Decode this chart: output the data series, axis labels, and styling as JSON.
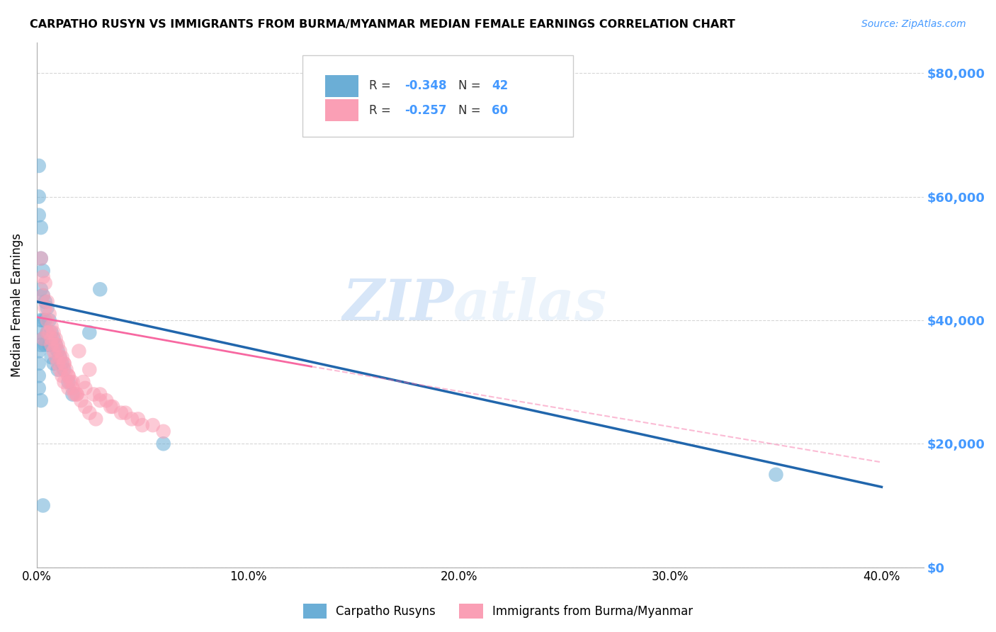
{
  "title": "CARPATHO RUSYN VS IMMIGRANTS FROM BURMA/MYANMAR MEDIAN FEMALE EARNINGS CORRELATION CHART",
  "source": "Source: ZipAtlas.com",
  "ylabel": "Median Female Earnings",
  "xlabel_ticks": [
    "0.0%",
    "10.0%",
    "20.0%",
    "30.0%",
    "40.0%"
  ],
  "xlabel_vals": [
    0.0,
    0.1,
    0.2,
    0.3,
    0.4
  ],
  "ylabel_ticks": [
    0,
    20000,
    40000,
    60000,
    80000
  ],
  "ylabel_labels": [
    "$0",
    "$20,000",
    "$40,000",
    "$60,000",
    "$80,000"
  ],
  "legend1_label": "Carpatho Rusyns",
  "legend2_label": "Immigrants from Burma/Myanmar",
  "R1": -0.348,
  "N1": 42,
  "R2": -0.257,
  "N2": 60,
  "color_blue": "#6baed6",
  "color_pink": "#fa9fb5",
  "color_blue_line": "#2166ac",
  "color_pink_line": "#f768a1",
  "color_right_axis": "#4499ff",
  "blue_x": [
    0.001,
    0.001,
    0.001,
    0.001,
    0.002,
    0.002,
    0.002,
    0.002,
    0.002,
    0.003,
    0.003,
    0.003,
    0.003,
    0.004,
    0.004,
    0.004,
    0.005,
    0.005,
    0.006,
    0.006,
    0.007,
    0.007,
    0.008,
    0.008,
    0.009,
    0.01,
    0.01,
    0.011,
    0.012,
    0.013,
    0.015,
    0.017,
    0.025,
    0.03,
    0.06,
    0.35,
    0.003,
    0.002,
    0.001,
    0.001,
    0.001,
    0.001
  ],
  "blue_y": [
    65000,
    60000,
    57000,
    38000,
    55000,
    50000,
    45000,
    40000,
    36000,
    48000,
    44000,
    40000,
    37000,
    43000,
    40000,
    36000,
    42000,
    38000,
    40000,
    36000,
    38000,
    34000,
    37000,
    33000,
    36000,
    35000,
    32000,
    34000,
    33000,
    32000,
    30000,
    28000,
    38000,
    45000,
    20000,
    15000,
    10000,
    27000,
    35000,
    33000,
    31000,
    29000
  ],
  "pink_x": [
    0.002,
    0.003,
    0.003,
    0.004,
    0.004,
    0.005,
    0.005,
    0.006,
    0.006,
    0.007,
    0.007,
    0.008,
    0.008,
    0.009,
    0.009,
    0.01,
    0.01,
    0.011,
    0.011,
    0.012,
    0.012,
    0.013,
    0.013,
    0.014,
    0.015,
    0.015,
    0.016,
    0.017,
    0.018,
    0.019,
    0.02,
    0.022,
    0.023,
    0.025,
    0.027,
    0.03,
    0.03,
    0.033,
    0.035,
    0.036,
    0.04,
    0.042,
    0.045,
    0.048,
    0.05,
    0.055,
    0.06,
    0.003,
    0.005,
    0.007,
    0.009,
    0.011,
    0.013,
    0.015,
    0.017,
    0.019,
    0.021,
    0.023,
    0.025,
    0.028
  ],
  "pink_y": [
    50000,
    47000,
    44000,
    46000,
    42000,
    43000,
    40000,
    41000,
    38000,
    39000,
    36000,
    38000,
    35000,
    37000,
    34000,
    36000,
    33000,
    35000,
    32000,
    34000,
    31000,
    33000,
    30000,
    32000,
    31000,
    29000,
    30000,
    29000,
    28000,
    28000,
    35000,
    30000,
    29000,
    32000,
    28000,
    28000,
    27000,
    27000,
    26000,
    26000,
    25000,
    25000,
    24000,
    24000,
    23000,
    23000,
    22000,
    37000,
    38000,
    37000,
    36000,
    34000,
    33000,
    31000,
    30000,
    28000,
    27000,
    26000,
    25000,
    24000
  ],
  "watermark_zip": "ZIP",
  "watermark_atlas": "atlas",
  "ylim": [
    0,
    85000
  ],
  "xlim": [
    0,
    0.42
  ]
}
